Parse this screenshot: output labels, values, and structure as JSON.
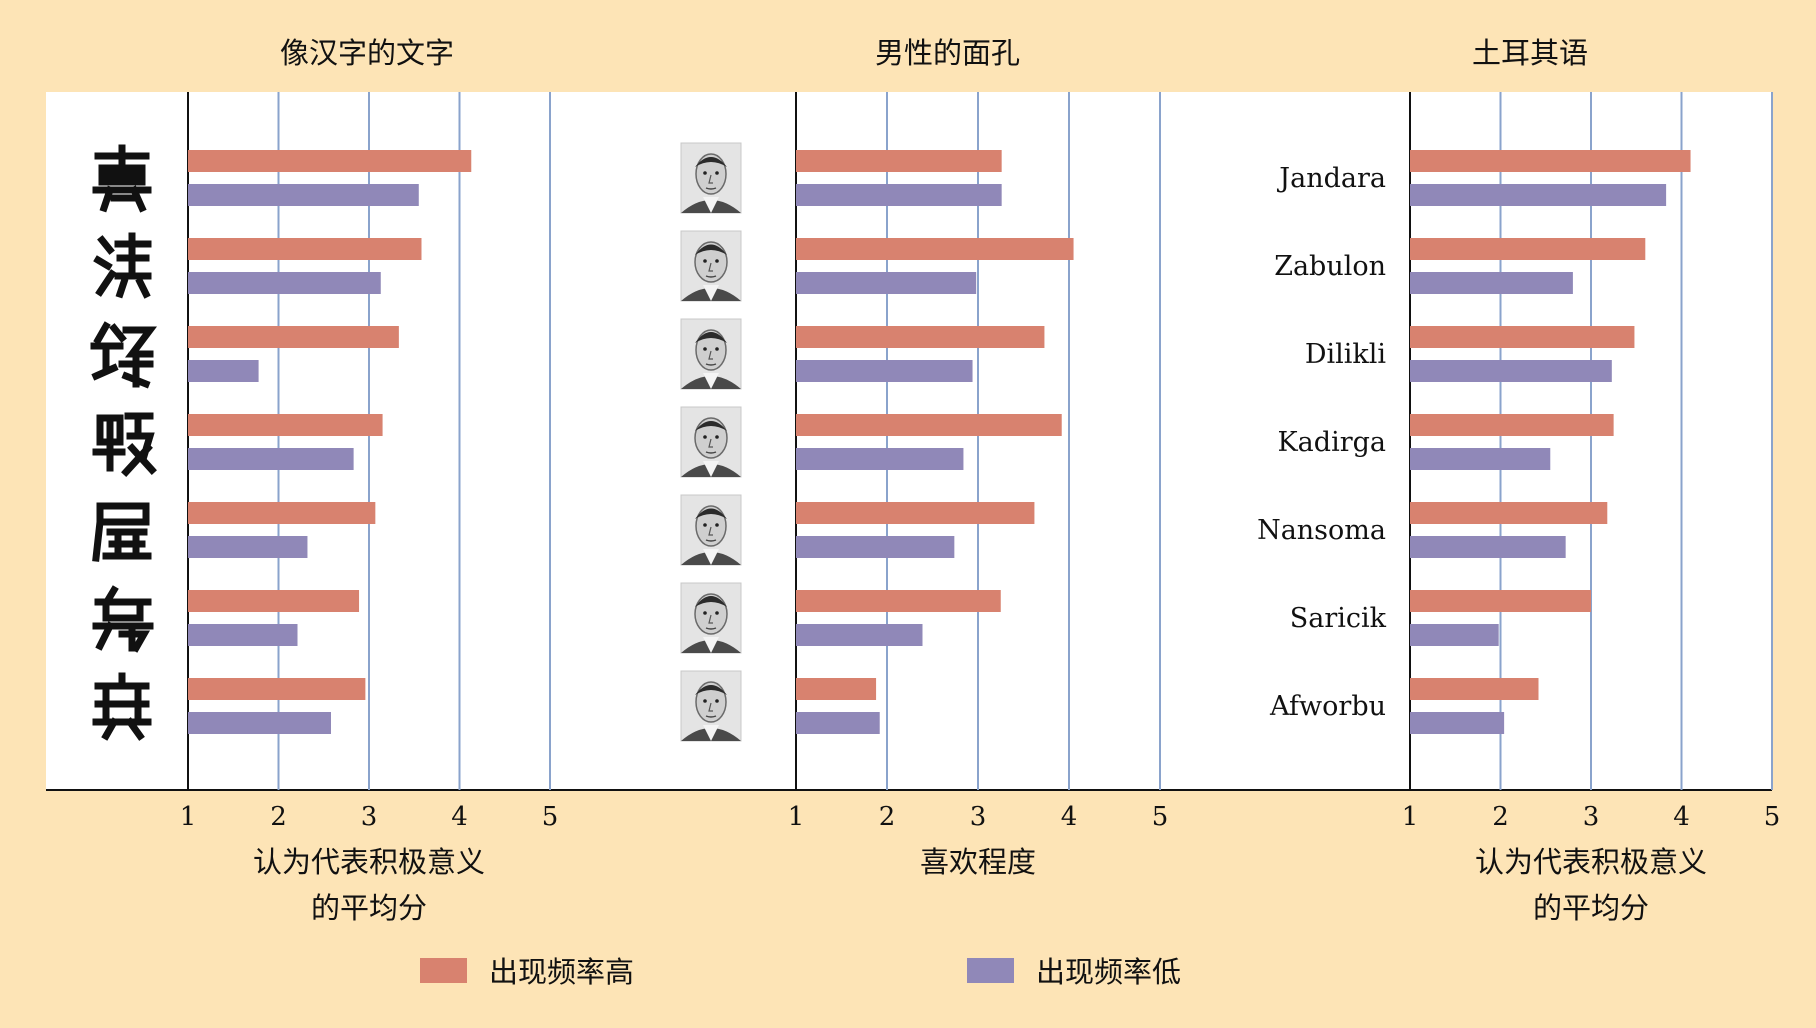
{
  "colors": {
    "background": "#fde4b6",
    "plot_area": "#ffffff",
    "high_frequency": "#d8826f",
    "low_frequency": "#9088b8",
    "gridline": "#8aa3cc"
  },
  "legend": {
    "high": "出现频率高",
    "low": "出现频率低"
  },
  "chart_data": [
    {
      "type": "bar",
      "orientation": "horizontal",
      "title": "像汉字的文字",
      "xlabel": [
        "认为代表积极意义",
        "的平均分"
      ],
      "xlim": [
        1,
        5
      ],
      "xticks": [
        "1",
        "2",
        "3",
        "4",
        "5"
      ],
      "category_kind": "pseudo-character glyphs",
      "categories": [
        "glyph-1",
        "glyph-2",
        "glyph-3",
        "glyph-4",
        "glyph-5",
        "glyph-6",
        "glyph-7"
      ],
      "series": [
        {
          "name": "出现频率高",
          "values": [
            4.13,
            3.58,
            3.33,
            3.15,
            3.07,
            2.89,
            2.96
          ]
        },
        {
          "name": "出现频率低",
          "values": [
            3.55,
            3.13,
            1.78,
            2.83,
            2.32,
            2.21,
            2.58
          ]
        }
      ]
    },
    {
      "type": "bar",
      "orientation": "horizontal",
      "title": "男性的面孔",
      "xlabel": [
        "喜欢程度"
      ],
      "xlim": [
        1,
        5
      ],
      "xticks": [
        "1",
        "2",
        "3",
        "4",
        "5"
      ],
      "category_kind": "male face portraits",
      "categories": [
        "face-1",
        "face-2",
        "face-3",
        "face-4",
        "face-5",
        "face-6",
        "face-7"
      ],
      "series": [
        {
          "name": "出现频率高",
          "values": [
            3.26,
            4.05,
            3.73,
            3.92,
            3.62,
            3.25,
            1.88
          ]
        },
        {
          "name": "出现频率低",
          "values": [
            3.26,
            2.98,
            2.94,
            2.84,
            2.74,
            2.39,
            1.92
          ]
        }
      ]
    },
    {
      "type": "bar",
      "orientation": "horizontal",
      "title": "土耳其语",
      "xlabel": [
        "认为代表积极意义",
        "的平均分"
      ],
      "xlim": [
        1,
        5
      ],
      "xticks": [
        "1",
        "2",
        "3",
        "4",
        "5"
      ],
      "categories": [
        "Jandara",
        "Zabulon",
        "Dilikli",
        "Kadirga",
        "Nansoma",
        "Saricik",
        "Afworbu"
      ],
      "series": [
        {
          "name": "出现频率高",
          "values": [
            4.1,
            3.6,
            3.48,
            3.25,
            3.18,
            3.0,
            2.42
          ]
        },
        {
          "name": "出现频率低",
          "values": [
            3.83,
            2.8,
            3.23,
            2.55,
            2.72,
            1.98,
            2.04
          ]
        }
      ]
    }
  ]
}
